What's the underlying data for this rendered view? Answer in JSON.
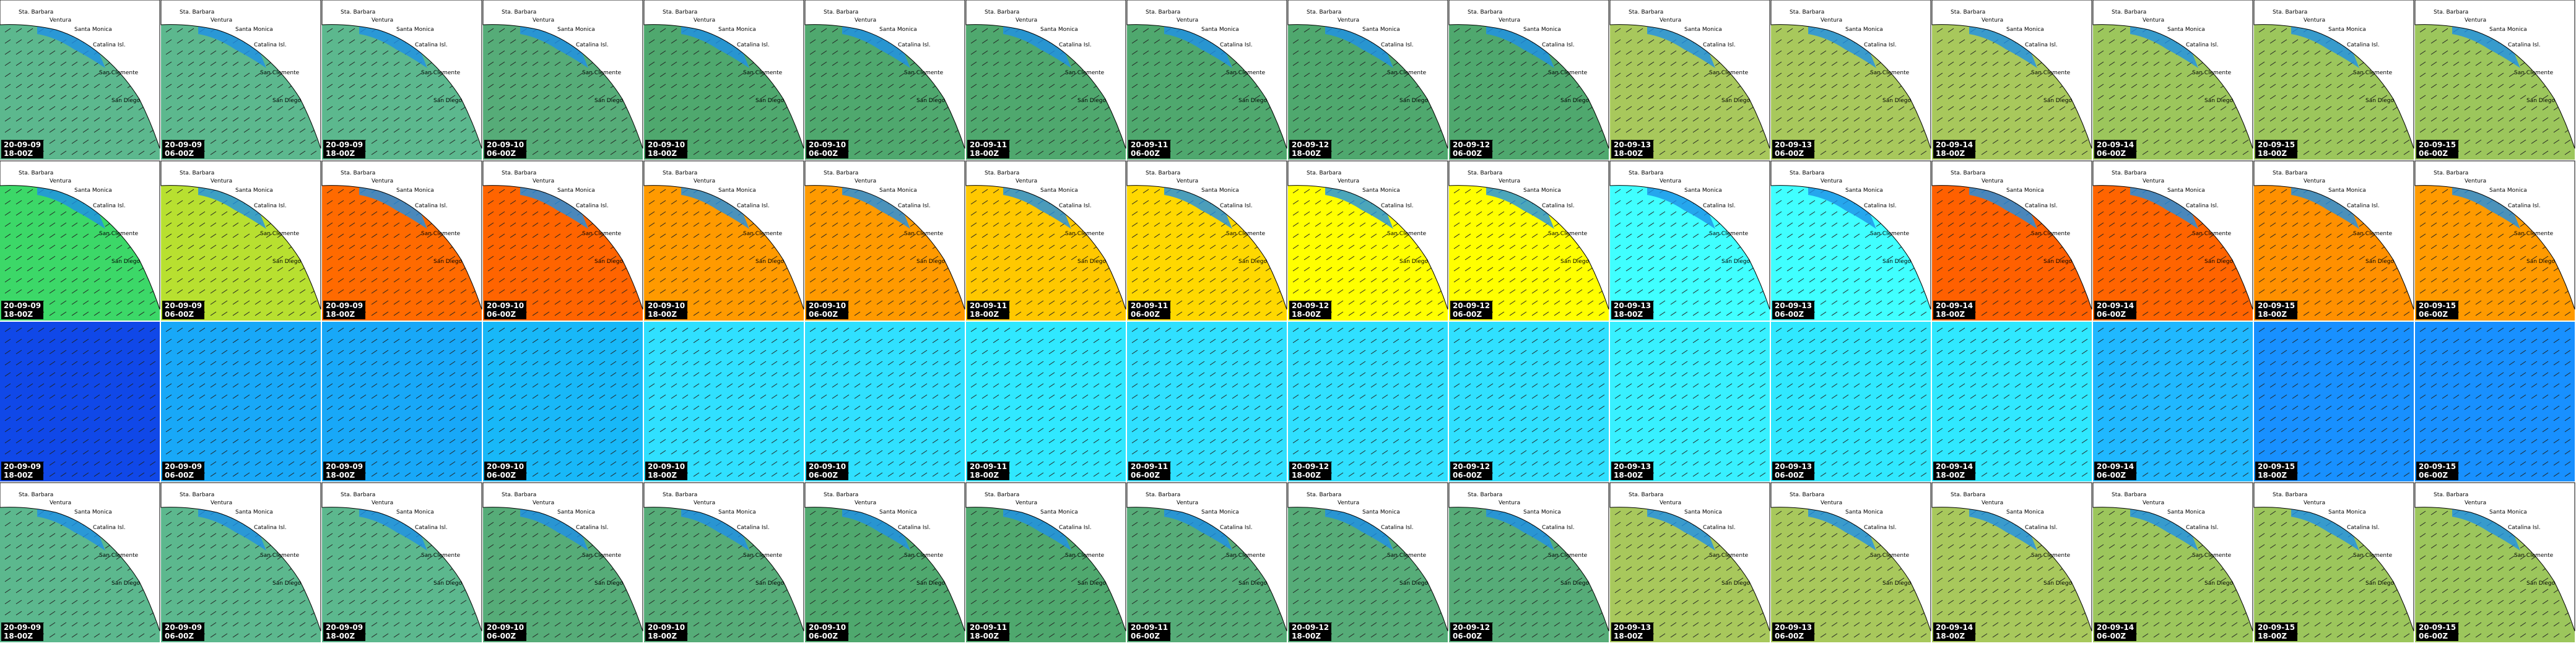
{
  "frames": [
    {
      "date": "20-09-09",
      "time": "18-00Z"
    },
    {
      "date": "20-09-09",
      "time": "06-00Z"
    },
    {
      "date": "20-09-09",
      "time": "18-00Z"
    },
    {
      "date": "20-09-10",
      "time": "06-00Z"
    },
    {
      "date": "20-09-10",
      "time": "18-00Z"
    },
    {
      "date": "20-09-10",
      "time": "06-00Z"
    },
    {
      "date": "20-09-11",
      "time": "18-00Z"
    },
    {
      "date": "20-09-11",
      "time": "06-00Z"
    },
    {
      "date": "20-09-12",
      "time": "18-00Z"
    },
    {
      "date": "20-09-12",
      "time": "06-00Z"
    },
    {
      "date": "20-09-13",
      "time": "18-00Z"
    },
    {
      "date": "20-09-13",
      "time": "06-00Z"
    },
    {
      "date": "20-09-14",
      "time": "18-00Z"
    },
    {
      "date": "20-09-14",
      "time": "06-00Z"
    },
    {
      "date": "20-09-15",
      "time": "18-00Z"
    },
    {
      "date": "20-09-15",
      "time": "06-00Z"
    }
  ],
  "places": [
    "Sta. Barbara",
    "Ventura",
    "Santa Monica",
    "Catalina Isl.",
    "San Clemente",
    "San Diego"
  ],
  "rows": [
    {
      "land": true,
      "colors": [
        "#5cb88e",
        "#5cb88e",
        "#5cb88e",
        "#56ac78",
        "#4fa86e",
        "#4fa86e",
        "#4fa86e",
        "#4fa86e",
        "#4fa86e",
        "#4fa86e",
        "#a8c85c",
        "#a8c85c",
        "#a8c85c",
        "#9cc65c",
        "#9cc65c",
        "#9cc65c"
      ]
    },
    {
      "land": true,
      "colors": [
        "#3cd868",
        "#b8e030",
        "#ff6a00",
        "#ff6400",
        "#ff9a00",
        "#ff9a00",
        "#ffc800",
        "#ffd800",
        "#ffff00",
        "#ffff00",
        "#40ffff",
        "#40ffff",
        "#ff6000",
        "#ff6400",
        "#ff9000",
        "#ff9a00"
      ]
    },
    {
      "land": false,
      "colors": [
        "#1048e8",
        "#18a8f8",
        "#18a8f8",
        "#18b8f8",
        "#30e0ff",
        "#30e0ff",
        "#30e8ff",
        "#30e0ff",
        "#30e0ff",
        "#30e0ff",
        "#38f0ff",
        "#30e8ff",
        "#30e8ff",
        "#20b8ff",
        "#1890ff",
        "#1890ff"
      ]
    },
    {
      "land": true,
      "colors": [
        "#5cb88e",
        "#5cb88e",
        "#5cb88e",
        "#56ac78",
        "#56ac78",
        "#4fa86e",
        "#4fa86e",
        "#56ac78",
        "#56ac78",
        "#56ac78",
        "#a8c85c",
        "#a8c85c",
        "#a8c85c",
        "#9cc65c",
        "#9cc65c",
        "#9cc65c"
      ]
    }
  ]
}
